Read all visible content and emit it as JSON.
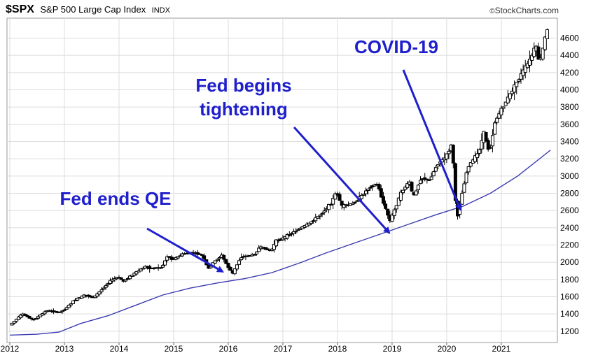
{
  "header": {
    "symbol": "$SPX",
    "name": "S&P 500 Large Cap Index",
    "exchange": "INDX",
    "credit": "StockCharts.com",
    "credit_mark": "©"
  },
  "colors": {
    "candle": "#000000",
    "moving_average": "#3a3ab0",
    "annotation": "#1f1fcc",
    "grid": "#dcdcdc"
  },
  "chart_data": {
    "type": "candlestick",
    "title": "$SPX S&P 500 Large Cap Index INDX",
    "grid": true,
    "xlim": [
      2012.0,
      2021.95
    ],
    "ylim": [
      1150,
      4750
    ],
    "x_ticks": [
      "2012",
      "2013",
      "2014",
      "2015",
      "2016",
      "2017",
      "2018",
      "2019",
      "2020",
      "2021"
    ],
    "y_ticks": [
      1200,
      1400,
      1600,
      1800,
      2000,
      2200,
      2400,
      2600,
      2800,
      3000,
      3200,
      3400,
      3600,
      3800,
      4000,
      4200,
      4400,
      4600
    ],
    "y_axis_side": "right",
    "price_series": [
      [
        2012.0,
        1260
      ],
      [
        2012.25,
        1400
      ],
      [
        2012.45,
        1330
      ],
      [
        2012.7,
        1440
      ],
      [
        2012.9,
        1420
      ],
      [
        2013.0,
        1440
      ],
      [
        2013.2,
        1560
      ],
      [
        2013.4,
        1620
      ],
      [
        2013.55,
        1590
      ],
      [
        2013.7,
        1680
      ],
      [
        2013.85,
        1780
      ],
      [
        2014.0,
        1830
      ],
      [
        2014.1,
        1780
      ],
      [
        2014.3,
        1870
      ],
      [
        2014.5,
        1950
      ],
      [
        2014.6,
        1930
      ],
      [
        2014.8,
        1940
      ],
      [
        2014.9,
        2070
      ],
      [
        2015.0,
        2030
      ],
      [
        2015.2,
        2100
      ],
      [
        2015.4,
        2110
      ],
      [
        2015.55,
        2080
      ],
      [
        2015.65,
        1920
      ],
      [
        2015.75,
        2000
      ],
      [
        2015.9,
        2080
      ],
      [
        2016.0,
        1960
      ],
      [
        2016.1,
        1870
      ],
      [
        2016.25,
        2060
      ],
      [
        2016.5,
        2090
      ],
      [
        2016.6,
        2180
      ],
      [
        2016.8,
        2130
      ],
      [
        2016.9,
        2250
      ],
      [
        2017.0,
        2270
      ],
      [
        2017.3,
        2380
      ],
      [
        2017.5,
        2450
      ],
      [
        2017.7,
        2550
      ],
      [
        2017.9,
        2680
      ],
      [
        2018.0,
        2820
      ],
      [
        2018.1,
        2650
      ],
      [
        2018.3,
        2680
      ],
      [
        2018.45,
        2760
      ],
      [
        2018.6,
        2870
      ],
      [
        2018.75,
        2910
      ],
      [
        2018.85,
        2700
      ],
      [
        2018.98,
        2480
      ],
      [
        2019.0,
        2510
      ],
      [
        2019.2,
        2830
      ],
      [
        2019.35,
        2940
      ],
      [
        2019.4,
        2740
      ],
      [
        2019.55,
        2980
      ],
      [
        2019.7,
        2950
      ],
      [
        2019.85,
        3140
      ],
      [
        2020.0,
        3220
      ],
      [
        2020.12,
        3380
      ],
      [
        2020.2,
        2480
      ],
      [
        2020.3,
        2800
      ],
      [
        2020.4,
        3100
      ],
      [
        2020.6,
        3270
      ],
      [
        2020.7,
        3500
      ],
      [
        2020.8,
        3270
      ],
      [
        2020.9,
        3620
      ],
      [
        2021.0,
        3750
      ],
      [
        2021.2,
        3970
      ],
      [
        2021.4,
        4200
      ],
      [
        2021.55,
        4350
      ],
      [
        2021.65,
        4520
      ],
      [
        2021.72,
        4300
      ],
      [
        2021.85,
        4690
      ]
    ],
    "moving_average": [
      [
        2012.0,
        1155
      ],
      [
        2012.5,
        1165
      ],
      [
        2012.9,
        1190
      ],
      [
        2013.3,
        1290
      ],
      [
        2013.8,
        1380
      ],
      [
        2014.3,
        1500
      ],
      [
        2014.8,
        1620
      ],
      [
        2015.3,
        1700
      ],
      [
        2015.8,
        1760
      ],
      [
        2016.3,
        1810
      ],
      [
        2016.8,
        1880
      ],
      [
        2017.3,
        1990
      ],
      [
        2017.8,
        2110
      ],
      [
        2018.3,
        2220
      ],
      [
        2018.8,
        2330
      ],
      [
        2019.3,
        2440
      ],
      [
        2019.8,
        2550
      ],
      [
        2020.3,
        2650
      ],
      [
        2020.8,
        2800
      ],
      [
        2021.3,
        3000
      ],
      [
        2021.8,
        3250
      ],
      [
        2021.9,
        3300
      ]
    ],
    "annotations": [
      {
        "text": "Fed ends QE",
        "x": 2015.9,
        "y": 1890
      },
      {
        "text": "Fed begins tightening",
        "x": 2018.95,
        "y": 2340
      },
      {
        "text": "COVID-19",
        "x": 2020.25,
        "y": 2610
      }
    ]
  }
}
